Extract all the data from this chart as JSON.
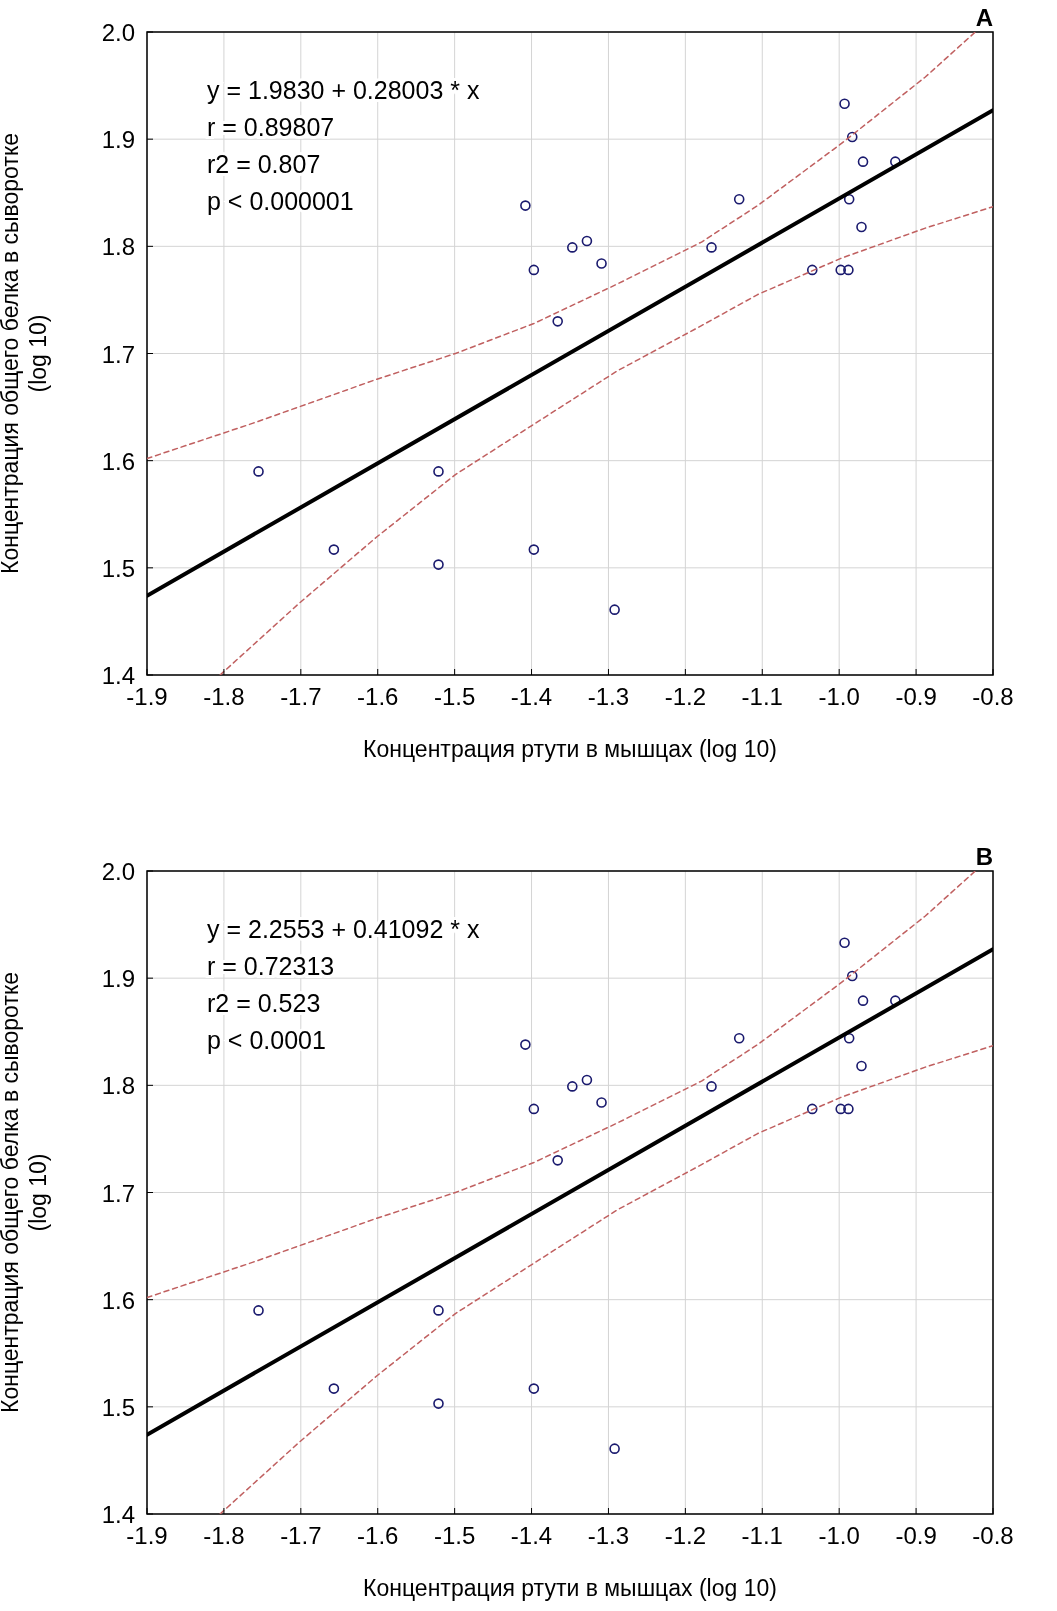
{
  "chart_data": [
    {
      "type": "scatter",
      "title": "A",
      "xlabel": "Концентрация ртути в мышцах (log 10)",
      "ylabel": "Концентрация общего белка в сыворотке\n(log 10)",
      "annotations": [
        "y = 1.9830 + 0.28003 * x",
        "r = 0.89807",
        "r2 = 0.807",
        "p < 0.000001"
      ],
      "xlim": [
        -1.9,
        -0.8
      ],
      "ylim": [
        1.4,
        2.0
      ],
      "xticks": [
        -1.9,
        -1.8,
        -1.7,
        -1.6,
        -1.5,
        -1.4,
        -1.3,
        -1.2,
        -1.1,
        {
          "value": -1.0,
          "label": "-1.0"
        },
        -0.9,
        -0.8
      ],
      "yticks": [
        1.4,
        1.5,
        1.6,
        1.7,
        1.8,
        1.9,
        {
          "value": 2.0,
          "label": "2.0"
        }
      ],
      "grid": true,
      "series": [
        {
          "type": "scatter",
          "color": "#1a1a6e",
          "marker": "circle",
          "x": [
            -1.755,
            -1.657,
            -1.521,
            -1.521,
            -1.397,
            -1.408,
            -1.397,
            -1.366,
            -1.347,
            -1.328,
            -1.309,
            -1.292,
            -1.166,
            -1.13,
            -1.035,
            -0.998,
            -0.988,
            -0.993,
            -0.983,
            -0.969,
            -0.927,
            -0.987,
            -0.971
          ],
          "values": [
            1.59,
            1.517,
            1.59,
            1.503,
            1.517,
            1.838,
            1.778,
            1.73,
            1.799,
            1.805,
            1.784,
            1.461,
            1.799,
            1.844,
            1.778,
            1.778,
            1.778,
            1.933,
            1.902,
            1.879,
            1.879,
            1.844,
            1.818
          ]
        },
        {
          "type": "line",
          "color": "#000000",
          "line_style": "solid",
          "x": [
            -1.9,
            -0.8
          ],
          "values": [
            1.474,
            1.927
          ]
        },
        {
          "type": "line",
          "color": "#c06060",
          "line_style": "dashed",
          "x": [
            -1.9,
            -1.762,
            -1.601,
            -1.499,
            -1.397,
            -1.288,
            -1.179,
            -1.106,
            -0.997,
            -0.888,
            -0.823
          ],
          "values": [
            1.602,
            1.635,
            1.676,
            1.7,
            1.728,
            1.765,
            1.804,
            1.838,
            1.896,
            1.958,
            2.0
          ]
        },
        {
          "type": "line",
          "color": "#c06060",
          "line_style": "dashed",
          "x": [
            -1.805,
            -1.702,
            -1.601,
            -1.499,
            -1.397,
            -1.288,
            -1.179,
            -1.106,
            -0.997,
            -0.888,
            -0.8
          ],
          "values": [
            1.4,
            1.467,
            1.529,
            1.587,
            1.634,
            1.684,
            1.726,
            1.755,
            1.789,
            1.817,
            1.837
          ]
        }
      ]
    },
    {
      "type": "scatter",
      "title": "B",
      "xlabel": "Концентрация ртути в мышцах (log 10)",
      "ylabel": "Концентрация общего белка в сыворотке\n(log 10)",
      "annotations": [
        "y = 2.2553 + 0.41092 * x",
        "r = 0.72313",
        "r2 = 0.523",
        "p < 0.0001"
      ],
      "xlim": [
        -1.9,
        -0.8
      ],
      "ylim": [
        1.4,
        2.0
      ],
      "xticks": [
        -1.9,
        -1.8,
        -1.7,
        -1.6,
        -1.5,
        -1.4,
        -1.3,
        -1.2,
        -1.1,
        {
          "value": -1.0,
          "label": "-1.0"
        },
        -0.9,
        -0.8
      ],
      "yticks": [
        1.4,
        1.5,
        1.6,
        1.7,
        1.8,
        1.9,
        {
          "value": 2.0,
          "label": "2.0"
        }
      ],
      "grid": true,
      "series": [
        {
          "type": "scatter",
          "color": "#1a1a6e",
          "marker": "circle",
          "x": [
            -1.755,
            -1.657,
            -1.521,
            -1.521,
            -1.397,
            -1.408,
            -1.397,
            -1.366,
            -1.347,
            -1.328,
            -1.309,
            -1.292,
            -1.166,
            -1.13,
            -1.035,
            -0.998,
            -0.988,
            -0.993,
            -0.983,
            -0.969,
            -0.927,
            -0.987,
            -0.971
          ],
          "values": [
            1.59,
            1.517,
            1.59,
            1.503,
            1.517,
            1.838,
            1.778,
            1.73,
            1.799,
            1.805,
            1.784,
            1.461,
            1.799,
            1.844,
            1.778,
            1.778,
            1.778,
            1.933,
            1.902,
            1.879,
            1.879,
            1.844,
            1.818
          ]
        },
        {
          "type": "line",
          "color": "#000000",
          "line_style": "solid",
          "x": [
            -1.9,
            -0.8
          ],
          "values": [
            1.474,
            1.927
          ]
        },
        {
          "type": "line",
          "color": "#c06060",
          "line_style": "dashed",
          "x": [
            -1.9,
            -1.762,
            -1.601,
            -1.499,
            -1.397,
            -1.288,
            -1.179,
            -1.106,
            -0.997,
            -0.888,
            -0.823
          ],
          "values": [
            1.602,
            1.635,
            1.676,
            1.7,
            1.728,
            1.765,
            1.804,
            1.838,
            1.896,
            1.958,
            2.0
          ]
        },
        {
          "type": "line",
          "color": "#c06060",
          "line_style": "dashed",
          "x": [
            -1.805,
            -1.702,
            -1.601,
            -1.499,
            -1.397,
            -1.288,
            -1.179,
            -1.106,
            -0.997,
            -0.888,
            -0.8
          ],
          "values": [
            1.4,
            1.467,
            1.529,
            1.587,
            1.634,
            1.684,
            1.726,
            1.755,
            1.789,
            1.817,
            1.837
          ]
        }
      ]
    }
  ]
}
